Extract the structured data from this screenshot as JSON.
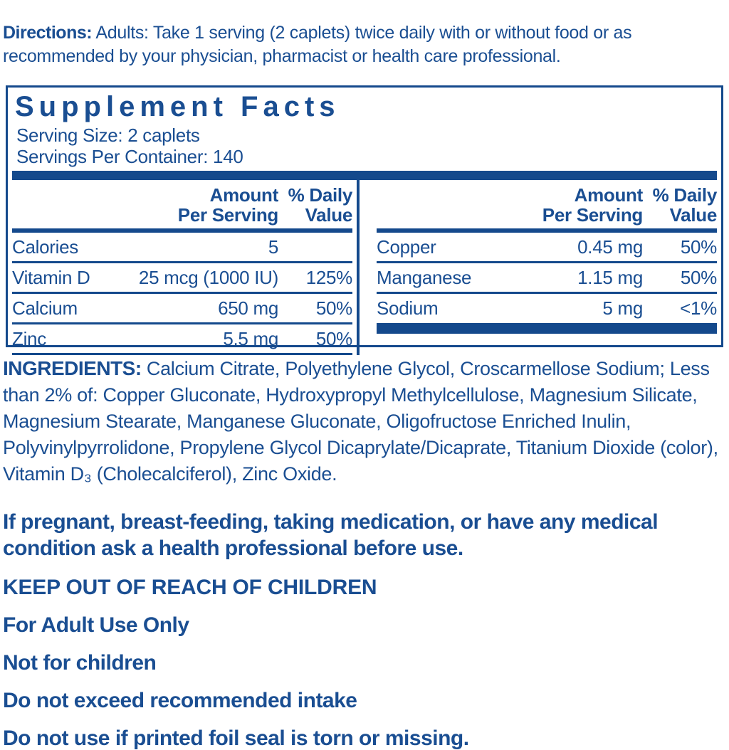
{
  "colors": {
    "text_blue": "#1a4e92",
    "bar_blue": "#14498c",
    "background": "#ffffff"
  },
  "directions": {
    "label": "Directions:",
    "text": " Adults: Take 1 serving (2 caplets) twice daily with or without food or as recommended by your physician, pharmacist or health care professional."
  },
  "supplement_facts": {
    "title": "Supplement Facts",
    "serving_size": "Serving Size: 2 caplets",
    "servings_per_container": "Servings Per Container: 140",
    "headers": {
      "amount_top": "Amount",
      "amount_bottom": "Per Serving",
      "dv_top": "% Daily",
      "dv_bottom": "Value"
    },
    "left_rows": [
      {
        "name": "Calories",
        "amount": "5",
        "dv": ""
      },
      {
        "name": "Vitamin D",
        "amount": "25 mcg (1000 IU)",
        "dv": "125%"
      },
      {
        "name": "Calcium",
        "amount": "650 mg",
        "dv": "50%"
      },
      {
        "name": "Zinc",
        "amount": "5.5 mg",
        "dv": "50%"
      }
    ],
    "right_rows": [
      {
        "name": "Copper",
        "amount": "0.45 mg",
        "dv": "50%"
      },
      {
        "name": "Manganese",
        "amount": "1.15 mg",
        "dv": "50%"
      },
      {
        "name": "Sodium",
        "amount": "5 mg",
        "dv": "<1%"
      }
    ]
  },
  "ingredients": {
    "label": "INGREDIENTS:",
    "text": " Calcium Citrate, Polyethylene Glycol, Croscarmellose Sodium; Less than 2% of: Copper Gluconate, Hydroxypropyl Methylcellulose, Magnesium Silicate, Magnesium Stearate, Manganese Gluconate, Oligofructose Enriched Inulin, Polyvinylpyrrolidone, Propylene Glycol Dicaprylate/Dicaprate, Titanium Dioxide (color), Vitamin D₃ (Cholecalciferol), Zinc Oxide."
  },
  "warnings": {
    "pregnant": "If pregnant, breast-feeding, taking medication, or have any medical condition ask a health professional before use.",
    "keep_out": "KEEP OUT OF REACH OF CHILDREN",
    "adult_use": "For Adult Use Only",
    "not_children": "Not for children",
    "no_exceed": "Do not exceed recommended intake",
    "foil_seal": "Do not use if printed foil seal is torn or missing."
  }
}
